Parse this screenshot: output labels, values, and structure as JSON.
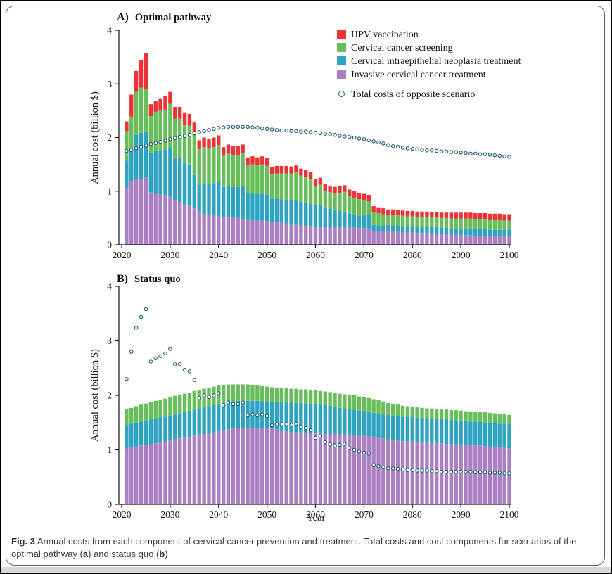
{
  "figure": {
    "caption": {
      "prefix": "Fig. 3",
      "body": " Annual costs from each component of cervical cancer prevention and treatment. Total costs and cost components for scenarios of the optimal pathway (",
      "bold_a": "a",
      "mid": ") and status quo (",
      "bold_b": "b",
      "end": ")"
    }
  },
  "legend": {
    "items": [
      {
        "label": "HPV vaccination",
        "color": "#ee3235"
      },
      {
        "label": "Cervical cancer screening",
        "color": "#68be5a"
      },
      {
        "label": "Cervical intraepithelial neoplasia treatment",
        "color": "#2fa3c2"
      },
      {
        "label": "Invasive cervical cancer treatment",
        "color": "#aa80c2"
      }
    ],
    "scatter": {
      "label": "Total costs of opposite scenario",
      "ring_color": "#1b5a6a",
      "fill_color": "#fbfeff"
    }
  },
  "chart_data": [
    {
      "type": "bar",
      "stacked": true,
      "panel": "A",
      "title_prefix": "A)",
      "title": "Optimal pathway",
      "ylabel": "Annual cost (billion $)",
      "xlabel": "",
      "ylim": [
        0,
        4
      ],
      "yticks": [
        0,
        1,
        2,
        3,
        4
      ],
      "xticks": [
        2020,
        2030,
        2040,
        2050,
        2060,
        2070,
        2080,
        2090,
        2100
      ],
      "years_from": 2021,
      "years_to": 2100,
      "series": [
        {
          "name": "Invasive cervical cancer treatment",
          "color": "#aa80c2",
          "values": [
            1.06,
            1.18,
            1.21,
            1.23,
            1.25,
            0.98,
            0.95,
            0.94,
            0.93,
            0.91,
            0.83,
            0.8,
            0.75,
            0.73,
            0.68,
            0.63,
            0.56,
            0.55,
            0.55,
            0.54,
            0.52,
            0.51,
            0.5,
            0.5,
            0.48,
            0.46,
            0.46,
            0.45,
            0.45,
            0.44,
            0.42,
            0.42,
            0.41,
            0.4,
            0.37,
            0.37,
            0.36,
            0.36,
            0.35,
            0.34,
            0.34,
            0.33,
            0.33,
            0.33,
            0.33,
            0.32,
            0.32,
            0.32,
            0.31,
            0.31,
            0.31,
            0.26,
            0.25,
            0.25,
            0.25,
            0.24,
            0.24,
            0.23,
            0.23,
            0.23,
            0.22,
            0.22,
            0.22,
            0.21,
            0.21,
            0.2,
            0.2,
            0.19,
            0.19,
            0.18,
            0.18,
            0.18,
            0.17,
            0.17,
            0.17,
            0.16,
            0.16,
            0.16,
            0.16,
            0.16
          ]
        },
        {
          "name": "Cervical intraepithelial neoplasia treatment",
          "color": "#2fa3c2",
          "values": [
            0.51,
            0.59,
            0.84,
            0.86,
            0.86,
            0.74,
            0.8,
            0.82,
            0.85,
            0.9,
            0.8,
            0.82,
            0.77,
            0.77,
            0.62,
            0.49,
            0.59,
            0.59,
            0.6,
            0.64,
            0.56,
            0.59,
            0.58,
            0.58,
            0.62,
            0.5,
            0.5,
            0.5,
            0.5,
            0.5,
            0.44,
            0.44,
            0.44,
            0.44,
            0.46,
            0.46,
            0.44,
            0.42,
            0.41,
            0.4,
            0.4,
            0.36,
            0.34,
            0.33,
            0.3,
            0.3,
            0.26,
            0.24,
            0.23,
            0.24,
            0.26,
            0.11,
            0.11,
            0.11,
            0.12,
            0.12,
            0.12,
            0.12,
            0.12,
            0.12,
            0.12,
            0.12,
            0.12,
            0.12,
            0.12,
            0.12,
            0.12,
            0.12,
            0.12,
            0.12,
            0.12,
            0.12,
            0.12,
            0.12,
            0.12,
            0.12,
            0.12,
            0.12,
            0.12,
            0.12
          ]
        },
        {
          "name": "Cervical cancer screening",
          "color": "#68be5a",
          "values": [
            0.55,
            0.62,
            0.8,
            0.84,
            0.8,
            0.68,
            0.73,
            0.74,
            0.74,
            0.82,
            0.72,
            0.73,
            0.72,
            0.72,
            0.78,
            0.66,
            0.67,
            0.66,
            0.67,
            0.68,
            0.58,
            0.6,
            0.6,
            0.6,
            0.61,
            0.52,
            0.54,
            0.53,
            0.55,
            0.53,
            0.45,
            0.47,
            0.48,
            0.49,
            0.5,
            0.52,
            0.49,
            0.49,
            0.47,
            0.35,
            0.38,
            0.32,
            0.31,
            0.3,
            0.34,
            0.37,
            0.33,
            0.32,
            0.31,
            0.28,
            0.24,
            0.24,
            0.23,
            0.21,
            0.19,
            0.2,
            0.19,
            0.19,
            0.18,
            0.18,
            0.18,
            0.18,
            0.18,
            0.18,
            0.18,
            0.18,
            0.18,
            0.18,
            0.18,
            0.19,
            0.19,
            0.19,
            0.19,
            0.19,
            0.18,
            0.18,
            0.18,
            0.18,
            0.17,
            0.17
          ]
        },
        {
          "name": "HPV vaccination",
          "color": "#ee3235",
          "values": [
            0.18,
            0.41,
            0.39,
            0.51,
            0.67,
            0.22,
            0.2,
            0.22,
            0.25,
            0.22,
            0.22,
            0.22,
            0.23,
            0.22,
            0.2,
            0.17,
            0.18,
            0.17,
            0.18,
            0.18,
            0.16,
            0.17,
            0.16,
            0.16,
            0.16,
            0.15,
            0.15,
            0.15,
            0.15,
            0.15,
            0.14,
            0.14,
            0.14,
            0.14,
            0.13,
            0.13,
            0.13,
            0.13,
            0.13,
            0.13,
            0.13,
            0.13,
            0.12,
            0.12,
            0.12,
            0.12,
            0.12,
            0.12,
            0.12,
            0.12,
            0.12,
            0.11,
            0.11,
            0.11,
            0.1,
            0.1,
            0.1,
            0.1,
            0.1,
            0.1,
            0.1,
            0.1,
            0.1,
            0.1,
            0.1,
            0.1,
            0.1,
            0.11,
            0.11,
            0.11,
            0.11,
            0.11,
            0.11,
            0.11,
            0.12,
            0.12,
            0.12,
            0.12,
            0.12,
            0.12
          ]
        }
      ],
      "scatter": {
        "name": "Total costs of opposite scenario",
        "values": [
          1.75,
          1.77,
          1.8,
          1.83,
          1.85,
          1.88,
          1.9,
          1.92,
          1.94,
          1.97,
          1.99,
          2.01,
          2.03,
          2.05,
          2.08,
          2.1,
          2.12,
          2.14,
          2.16,
          2.18,
          2.19,
          2.2,
          2.2,
          2.2,
          2.2,
          2.2,
          2.19,
          2.18,
          2.17,
          2.16,
          2.15,
          2.14,
          2.13,
          2.13,
          2.12,
          2.12,
          2.11,
          2.11,
          2.1,
          2.09,
          2.08,
          2.07,
          2.06,
          2.05,
          2.03,
          2.02,
          2.01,
          2.0,
          1.98,
          1.97,
          1.95,
          1.93,
          1.91,
          1.89,
          1.86,
          1.84,
          1.83,
          1.81,
          1.8,
          1.79,
          1.78,
          1.77,
          1.76,
          1.76,
          1.75,
          1.74,
          1.74,
          1.73,
          1.73,
          1.72,
          1.71,
          1.7,
          1.7,
          1.69,
          1.69,
          1.68,
          1.67,
          1.66,
          1.65,
          1.64
        ]
      }
    },
    {
      "type": "bar",
      "stacked": true,
      "panel": "B",
      "title_prefix": "B)",
      "title": "Status quo",
      "ylabel": "Annual cost (billion $)",
      "xlabel": "Year",
      "ylim": [
        0,
        4
      ],
      "yticks": [
        0,
        1,
        2,
        3,
        4
      ],
      "xticks": [
        2020,
        2030,
        2040,
        2050,
        2060,
        2070,
        2080,
        2090,
        2100
      ],
      "years_from": 2021,
      "years_to": 2100,
      "series": [
        {
          "name": "Invasive cervical cancer treatment",
          "color": "#aa80c2",
          "values": [
            1.02,
            1.04,
            1.06,
            1.08,
            1.09,
            1.11,
            1.12,
            1.14,
            1.15,
            1.17,
            1.19,
            1.21,
            1.23,
            1.24,
            1.26,
            1.28,
            1.29,
            1.31,
            1.32,
            1.34,
            1.36,
            1.38,
            1.39,
            1.4,
            1.4,
            1.4,
            1.4,
            1.4,
            1.4,
            1.4,
            1.39,
            1.37,
            1.36,
            1.34,
            1.33,
            1.32,
            1.32,
            1.31,
            1.31,
            1.3,
            1.3,
            1.29,
            1.29,
            1.29,
            1.29,
            1.28,
            1.28,
            1.27,
            1.27,
            1.26,
            1.25,
            1.24,
            1.23,
            1.21,
            1.19,
            1.18,
            1.17,
            1.16,
            1.15,
            1.15,
            1.14,
            1.14,
            1.13,
            1.13,
            1.12,
            1.12,
            1.11,
            1.11,
            1.1,
            1.1,
            1.09,
            1.09,
            1.08,
            1.08,
            1.07,
            1.06,
            1.06,
            1.05,
            1.04,
            1.03
          ]
        },
        {
          "name": "Cervical intraepithelial neoplasia treatment",
          "color": "#2fa3c2",
          "values": [
            0.44,
            0.44,
            0.44,
            0.44,
            0.45,
            0.45,
            0.46,
            0.46,
            0.46,
            0.46,
            0.46,
            0.46,
            0.46,
            0.48,
            0.48,
            0.48,
            0.49,
            0.49,
            0.5,
            0.51,
            0.5,
            0.5,
            0.5,
            0.5,
            0.5,
            0.5,
            0.5,
            0.5,
            0.49,
            0.49,
            0.49,
            0.51,
            0.51,
            0.53,
            0.54,
            0.54,
            0.54,
            0.54,
            0.54,
            0.54,
            0.53,
            0.53,
            0.52,
            0.5,
            0.48,
            0.48,
            0.47,
            0.46,
            0.45,
            0.45,
            0.44,
            0.44,
            0.44,
            0.44,
            0.45,
            0.45,
            0.45,
            0.45,
            0.46,
            0.45,
            0.45,
            0.45,
            0.45,
            0.45,
            0.45,
            0.44,
            0.45,
            0.44,
            0.44,
            0.44,
            0.44,
            0.43,
            0.44,
            0.43,
            0.43,
            0.44,
            0.43,
            0.43,
            0.44,
            0.44
          ]
        },
        {
          "name": "Cervical cancer screening",
          "color": "#68be5a",
          "values": [
            0.29,
            0.29,
            0.3,
            0.31,
            0.31,
            0.32,
            0.32,
            0.32,
            0.33,
            0.34,
            0.34,
            0.34,
            0.34,
            0.33,
            0.34,
            0.34,
            0.34,
            0.34,
            0.34,
            0.33,
            0.33,
            0.32,
            0.31,
            0.3,
            0.3,
            0.3,
            0.29,
            0.28,
            0.28,
            0.27,
            0.27,
            0.26,
            0.26,
            0.26,
            0.25,
            0.26,
            0.25,
            0.26,
            0.25,
            0.25,
            0.25,
            0.25,
            0.25,
            0.26,
            0.26,
            0.26,
            0.26,
            0.27,
            0.26,
            0.26,
            0.26,
            0.25,
            0.24,
            0.24,
            0.22,
            0.21,
            0.21,
            0.2,
            0.19,
            0.19,
            0.19,
            0.18,
            0.18,
            0.18,
            0.18,
            0.18,
            0.18,
            0.18,
            0.19,
            0.18,
            0.18,
            0.18,
            0.18,
            0.18,
            0.19,
            0.18,
            0.18,
            0.18,
            0.17,
            0.17
          ]
        }
      ],
      "scatter": {
        "name": "Total costs of opposite scenario",
        "values": [
          2.3,
          2.8,
          3.24,
          3.44,
          3.58,
          2.62,
          2.68,
          2.72,
          2.77,
          2.85,
          2.57,
          2.57,
          2.47,
          2.44,
          2.28,
          1.95,
          2.0,
          1.97,
          2.0,
          2.04,
          1.82,
          1.87,
          1.84,
          1.84,
          1.87,
          1.63,
          1.65,
          1.63,
          1.65,
          1.62,
          1.45,
          1.47,
          1.47,
          1.47,
          1.46,
          1.48,
          1.42,
          1.4,
          1.36,
          1.22,
          1.25,
          1.14,
          1.1,
          1.08,
          1.09,
          1.11,
          1.03,
          1.0,
          0.97,
          0.95,
          0.93,
          0.72,
          0.7,
          0.68,
          0.66,
          0.66,
          0.65,
          0.64,
          0.63,
          0.63,
          0.62,
          0.62,
          0.62,
          0.61,
          0.61,
          0.6,
          0.6,
          0.6,
          0.6,
          0.6,
          0.6,
          0.6,
          0.59,
          0.59,
          0.59,
          0.58,
          0.58,
          0.58,
          0.57,
          0.57
        ]
      }
    }
  ]
}
